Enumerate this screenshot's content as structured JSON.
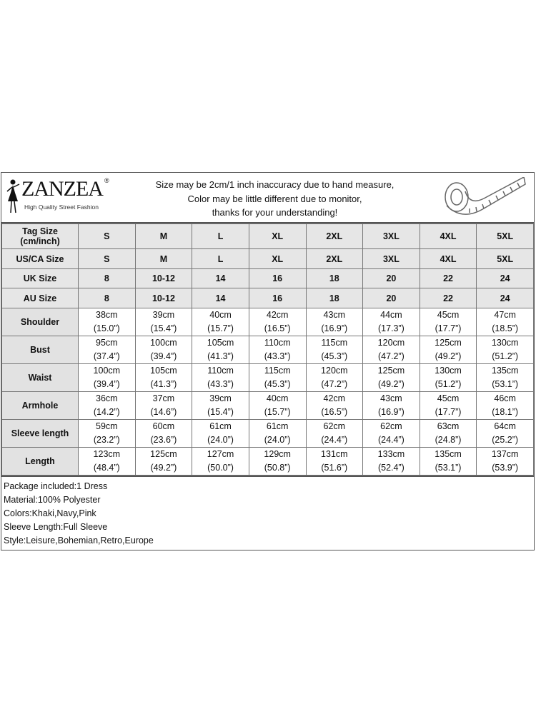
{
  "brand": {
    "name": "ZANZEA",
    "registered": "®",
    "tagline": "High Quality Street Fashion"
  },
  "notice": [
    "Size may be 2cm/1 inch inaccuracy due to hand measure,",
    "Color may be little different due to monitor,",
    "thanks for your understanding!"
  ],
  "icons": {
    "logo": "dancer-figure-icon",
    "measure": "tape-measure-icon"
  },
  "size_rows": [
    {
      "label": "Tag Size (cm/inch)",
      "values": [
        "S",
        "M",
        "L",
        "XL",
        "2XL",
        "3XL",
        "4XL",
        "5XL"
      ]
    },
    {
      "label": "US/CA Size",
      "values": [
        "S",
        "M",
        "L",
        "XL",
        "2XL",
        "3XL",
        "4XL",
        "5XL"
      ]
    },
    {
      "label": "UK Size",
      "values": [
        "8",
        "10-12",
        "14",
        "16",
        "18",
        "20",
        "22",
        "24"
      ]
    },
    {
      "label": "AU Size",
      "values": [
        "8",
        "10-12",
        "14",
        "16",
        "18",
        "20",
        "22",
        "24"
      ]
    }
  ],
  "measure_rows": [
    {
      "label": "Shoulder",
      "cm": [
        "38cm",
        "39cm",
        "40cm",
        "42cm",
        "43cm",
        "44cm",
        "45cm",
        "47cm"
      ],
      "inch": [
        "(15.0”)",
        "(15.4”)",
        "(15.7”)",
        "(16.5”)",
        "(16.9”)",
        "(17.3”)",
        "(17.7”)",
        "(18.5”)"
      ]
    },
    {
      "label": "Bust",
      "cm": [
        "95cm",
        "100cm",
        "105cm",
        "110cm",
        "115cm",
        "120cm",
        "125cm",
        "130cm"
      ],
      "inch": [
        "(37.4”)",
        "(39.4”)",
        "(41.3”)",
        "(43.3”)",
        "(45.3”)",
        "(47.2”)",
        "(49.2”)",
        "(51.2”)"
      ]
    },
    {
      "label": "Waist",
      "cm": [
        "100cm",
        "105cm",
        "110cm",
        "115cm",
        "120cm",
        "125cm",
        "130cm",
        "135cm"
      ],
      "inch": [
        "(39.4”)",
        "(41.3”)",
        "(43.3”)",
        "(45.3”)",
        "(47.2”)",
        "(49.2”)",
        "(51.2”)",
        "(53.1”)"
      ]
    },
    {
      "label": "Armhole",
      "cm": [
        "36cm",
        "37cm",
        "39cm",
        "40cm",
        "42cm",
        "43cm",
        "45cm",
        "46cm"
      ],
      "inch": [
        "(14.2”)",
        "(14.6”)",
        "(15.4”)",
        "(15.7”)",
        "(16.5”)",
        "(16.9”)",
        "(17.7”)",
        "(18.1”)"
      ]
    },
    {
      "label": "Sleeve length",
      "cm": [
        "59cm",
        "60cm",
        "61cm",
        "61cm",
        "62cm",
        "62cm",
        "63cm",
        "64cm"
      ],
      "inch": [
        "(23.2”)",
        "(23.6”)",
        "(24.0”)",
        "(24.0”)",
        "(24.4”)",
        "(24.4”)",
        "(24.8”)",
        "(25.2”)"
      ]
    },
    {
      "label": "Length",
      "cm": [
        "123cm",
        "125cm",
        "127cm",
        "129cm",
        "131cm",
        "133cm",
        "135cm",
        "137cm"
      ],
      "inch": [
        "(48.4”)",
        "(49.2”)",
        "(50.0”)",
        "(50.8”)",
        "(51.6”)",
        "(52.4”)",
        "(53.1”)",
        "(53.9”)"
      ]
    }
  ],
  "info": [
    "Package included:1 Dress",
    "Material:100% Polyester",
    "Colors:Khaki,Navy,Pink",
    "Sleeve Length:Full Sleeve",
    "Style:Leisure,Bohemian,Retro,Europe"
  ]
}
